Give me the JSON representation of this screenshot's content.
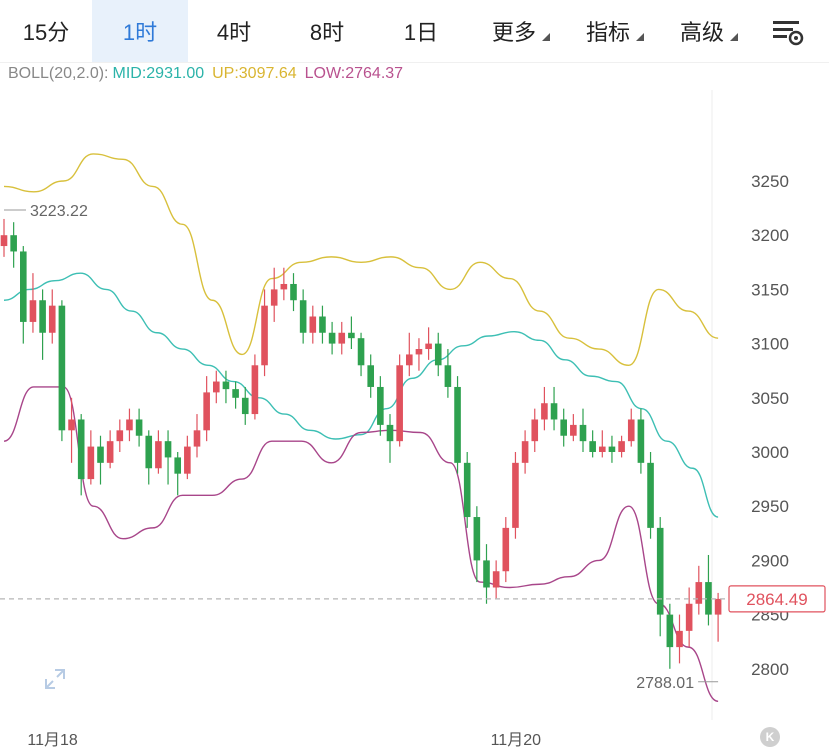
{
  "tabs": [
    {
      "label": "15分",
      "active": false
    },
    {
      "label": "1时",
      "active": true
    },
    {
      "label": "4时",
      "active": false
    },
    {
      "label": "8时",
      "active": false
    },
    {
      "label": "1日",
      "active": false
    }
  ],
  "menus": [
    {
      "label": "更多"
    },
    {
      "label": "指标"
    },
    {
      "label": "高级"
    }
  ],
  "settings_icon": "chart-settings-icon",
  "indicator": {
    "name": "BOLL(20,2.0):",
    "mid": "MID:2931.00",
    "up": "UP:3097.64",
    "low": "LOW:2764.37"
  },
  "colors": {
    "up_candle": "#e0525e",
    "down_candle": "#2ea14f",
    "mid_line": "#3dbfb4",
    "upper_line": "#d8c03c",
    "lower_line": "#a8468a",
    "price_tag": "#e0525e"
  },
  "chart_data": {
    "type": "candlestick",
    "y_ticks": [
      3250,
      3200,
      3150,
      3100,
      3050,
      3000,
      2950,
      2900,
      2850,
      2800
    ],
    "ylim": [
      2770,
      3295
    ],
    "x_labels": [
      {
        "label": "11月18",
        "index": 4
      },
      {
        "label": "11月20",
        "index": 52
      }
    ],
    "max_marker": {
      "label": "3223.22",
      "value": 3223.22,
      "index": 0
    },
    "min_marker": {
      "label": "2788.01",
      "value": 2788.01,
      "index": 74
    },
    "current_price": {
      "label": "2864.49",
      "value": 2864.49
    },
    "candles": [
      [
        3190,
        3200,
        3215,
        3180
      ],
      [
        3200,
        3185,
        3212,
        3170
      ],
      [
        3185,
        3120,
        3190,
        3100
      ],
      [
        3120,
        3140,
        3165,
        3110
      ],
      [
        3140,
        3110,
        3150,
        3085
      ],
      [
        3110,
        3135,
        3150,
        3100
      ],
      [
        3135,
        3020,
        3140,
        3010
      ],
      [
        3020,
        3030,
        3050,
        2990
      ],
      [
        3030,
        2975,
        3035,
        2960
      ],
      [
        2975,
        3005,
        3020,
        2970
      ],
      [
        3005,
        2990,
        3015,
        2970
      ],
      [
        2990,
        3010,
        3020,
        2985
      ],
      [
        3010,
        3020,
        3030,
        3000
      ],
      [
        3020,
        3030,
        3040,
        3010
      ],
      [
        3030,
        3015,
        3040,
        3005
      ],
      [
        3015,
        2985,
        3020,
        2970
      ],
      [
        2985,
        3010,
        3020,
        2980
      ],
      [
        3010,
        2995,
        3020,
        2970
      ],
      [
        2995,
        2980,
        3000,
        2960
      ],
      [
        2980,
        3005,
        3015,
        2975
      ],
      [
        3005,
        3020,
        3035,
        2995
      ],
      [
        3020,
        3055,
        3070,
        3010
      ],
      [
        3055,
        3065,
        3075,
        3045
      ],
      [
        3065,
        3058,
        3075,
        3045
      ],
      [
        3058,
        3050,
        3065,
        3040
      ],
      [
        3050,
        3035,
        3060,
        3025
      ],
      [
        3035,
        3080,
        3090,
        3030
      ],
      [
        3080,
        3135,
        3150,
        3070
      ],
      [
        3135,
        3150,
        3170,
        3120
      ],
      [
        3150,
        3155,
        3170,
        3140
      ],
      [
        3155,
        3140,
        3165,
        3130
      ],
      [
        3140,
        3110,
        3150,
        3100
      ],
      [
        3110,
        3125,
        3135,
        3100
      ],
      [
        3125,
        3110,
        3135,
        3100
      ],
      [
        3110,
        3100,
        3120,
        3090
      ],
      [
        3100,
        3110,
        3120,
        3090
      ],
      [
        3110,
        3105,
        3125,
        3095
      ],
      [
        3105,
        3080,
        3110,
        3070
      ],
      [
        3080,
        3060,
        3090,
        3050
      ],
      [
        3060,
        3025,
        3070,
        3015
      ],
      [
        3025,
        3010,
        3035,
        2990
      ],
      [
        3010,
        3080,
        3090,
        3005
      ],
      [
        3080,
        3090,
        3110,
        3070
      ],
      [
        3090,
        3095,
        3105,
        3075
      ],
      [
        3095,
        3100,
        3115,
        3085
      ],
      [
        3100,
        3080,
        3110,
        3070
      ],
      [
        3080,
        3060,
        3095,
        3050
      ],
      [
        3060,
        2990,
        3070,
        2980
      ],
      [
        2990,
        2940,
        3000,
        2930
      ],
      [
        2940,
        2900,
        2950,
        2880
      ],
      [
        2900,
        2875,
        2915,
        2860
      ],
      [
        2875,
        2890,
        2900,
        2865
      ],
      [
        2890,
        2930,
        2940,
        2880
      ],
      [
        2930,
        2990,
        3000,
        2920
      ],
      [
        2990,
        3010,
        3020,
        2980
      ],
      [
        3010,
        3030,
        3040,
        3000
      ],
      [
        3030,
        3045,
        3060,
        3020
      ],
      [
        3045,
        3030,
        3060,
        3020
      ],
      [
        3030,
        3015,
        3040,
        3005
      ],
      [
        3015,
        3025,
        3035,
        3010
      ],
      [
        3025,
        3010,
        3040,
        3000
      ],
      [
        3010,
        3000,
        3020,
        2995
      ],
      [
        3000,
        3005,
        3020,
        2995
      ],
      [
        3005,
        3000,
        3015,
        2990
      ],
      [
        3000,
        3010,
        3015,
        2995
      ],
      [
        3010,
        3030,
        3040,
        3005
      ],
      [
        3030,
        2990,
        3040,
        2980
      ],
      [
        2990,
        2930,
        3000,
        2920
      ],
      [
        2930,
        2850,
        2940,
        2830
      ],
      [
        2850,
        2820,
        2860,
        2800
      ],
      [
        2820,
        2835,
        2850,
        2805
      ],
      [
        2835,
        2860,
        2875,
        2820
      ],
      [
        2860,
        2880,
        2895,
        2850
      ],
      [
        2880,
        2850,
        2905,
        2840
      ],
      [
        2850,
        2864.49,
        2870,
        2825
      ]
    ],
    "mid_band": [
      3140,
      3150,
      3158,
      3165,
      3150,
      3130,
      3110,
      3095,
      3080,
      3065,
      3050,
      3035,
      3020,
      3012,
      3016,
      3040,
      3068,
      3085,
      3098,
      3107,
      3111,
      3103,
      3085,
      3070,
      3065,
      3040,
      3010,
      2985,
      2940
    ],
    "upper_band": [
      3245,
      3240,
      3250,
      3275,
      3270,
      3245,
      3210,
      3140,
      3090,
      3160,
      3175,
      3180,
      3175,
      3180,
      3170,
      3150,
      3175,
      3160,
      3130,
      3105,
      3095,
      3080,
      3150,
      3130,
      3105
    ],
    "lower_band": [
      3010,
      3060,
      3060,
      2950,
      2920,
      2930,
      2960,
      2960,
      2975,
      3010,
      3010,
      2990,
      3018,
      3020,
      3018,
      2990,
      2880,
      2875,
      2878,
      2885,
      2900,
      2950,
      2860,
      2820,
      2770
    ]
  }
}
